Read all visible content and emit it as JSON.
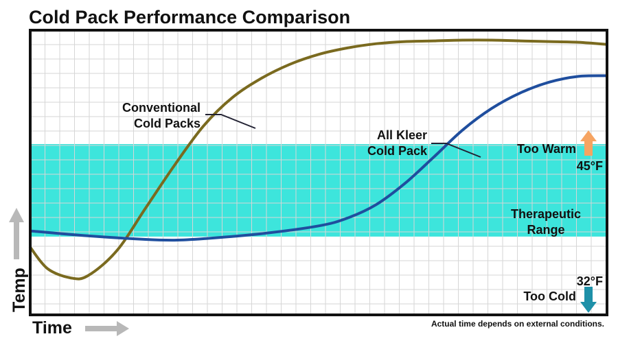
{
  "chart_data": {
    "type": "line",
    "title": "Cold Pack Performance Comparison",
    "xlabel": "Time",
    "ylabel": "Temp",
    "xlim": [
      0,
      100
    ],
    "ylim": [
      21,
      61
    ],
    "grid": true,
    "note": "Actual time depends on external conditions.",
    "band": {
      "label_line1": "Therapeutic",
      "label_line2": "Range",
      "low": 32,
      "high": 45,
      "low_label": "32°F",
      "high_label": "45°F",
      "color": "#3de5dc"
    },
    "zones": {
      "warm_label": "Too Warm",
      "warm_color": "#f6a462",
      "cold_label": "Too Cold",
      "cold_color": "#1e90a8"
    },
    "series": [
      {
        "label_line1": "Conventional",
        "label_line2": "Cold Packs",
        "color": "#7a6a1f",
        "x": [
          0,
          3,
          7,
          10,
          15,
          20,
          25,
          30,
          35,
          40,
          45,
          50,
          55,
          60,
          65,
          70,
          75,
          80,
          85,
          90,
          95,
          100
        ],
        "y": [
          30.5,
          27.5,
          26.2,
          26.5,
          30,
          36,
          42,
          47.5,
          51.5,
          54.2,
          56.2,
          57.6,
          58.5,
          59.1,
          59.4,
          59.5,
          59.6,
          59.6,
          59.5,
          59.4,
          59.3,
          59.0
        ]
      },
      {
        "label_line1": "All Kleer",
        "label_line2": "Cold Pack",
        "color": "#1f4e9e",
        "x": [
          0,
          10,
          20,
          25,
          30,
          40,
          50,
          55,
          60,
          65,
          70,
          75,
          80,
          85,
          90,
          95,
          100
        ],
        "y": [
          32.8,
          32.1,
          31.6,
          31.5,
          31.7,
          32.4,
          33.5,
          34.6,
          36.5,
          39.5,
          43.2,
          47,
          50,
          52.2,
          53.7,
          54.5,
          54.6
        ]
      }
    ]
  }
}
